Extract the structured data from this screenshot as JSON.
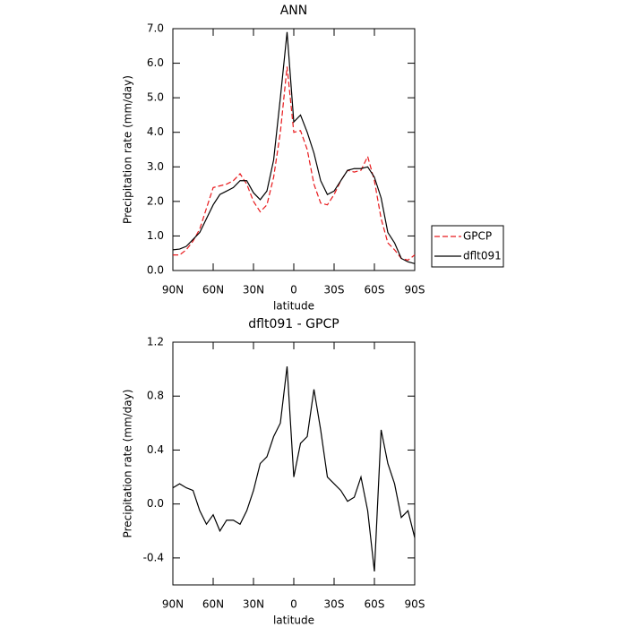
{
  "chart_data": [
    {
      "type": "line",
      "title": "ANN",
      "xlabel": "latitude",
      "ylabel": "Precipitation rate (mm/day)",
      "x": [
        90,
        85,
        80,
        75,
        70,
        65,
        60,
        55,
        50,
        45,
        40,
        35,
        30,
        25,
        20,
        15,
        10,
        5,
        0,
        -5,
        -10,
        -15,
        -20,
        -25,
        -30,
        -35,
        -40,
        -45,
        -50,
        -55,
        -60,
        -65,
        -70,
        -75,
        -80,
        -85,
        -90
      ],
      "series": [
        {
          "name": "GPCP",
          "color": "#e8191c",
          "dash": true,
          "values": [
            0.45,
            0.45,
            0.6,
            0.85,
            1.2,
            1.8,
            2.4,
            2.45,
            2.5,
            2.6,
            2.8,
            2.5,
            2.0,
            1.7,
            1.9,
            2.7,
            4.0,
            5.9,
            4.0,
            4.05,
            3.5,
            2.5,
            1.95,
            1.9,
            2.2,
            2.6,
            2.9,
            2.85,
            2.9,
            3.3,
            2.6,
            1.5,
            0.8,
            0.6,
            0.35,
            0.3,
            0.45
          ]
        },
        {
          "name": "dflt091",
          "color": "#000000",
          "dash": false,
          "values": [
            0.6,
            0.62,
            0.7,
            0.9,
            1.1,
            1.5,
            1.9,
            2.2,
            2.3,
            2.4,
            2.6,
            2.6,
            2.25,
            2.05,
            2.3,
            3.2,
            5.0,
            6.9,
            4.3,
            4.5,
            4.0,
            3.4,
            2.6,
            2.2,
            2.3,
            2.6,
            2.9,
            2.95,
            2.95,
            3.0,
            2.7,
            2.1,
            1.1,
            0.8,
            0.35,
            0.25,
            0.2
          ]
        }
      ],
      "xlim": [
        90,
        -90
      ],
      "xticks": [
        {
          "value": 90,
          "label": "90N"
        },
        {
          "value": 60,
          "label": "60N"
        },
        {
          "value": 30,
          "label": "30N"
        },
        0,
        {
          "value": -30,
          "label": "30S"
        },
        {
          "value": -60,
          "label": "60S"
        },
        {
          "value": -90,
          "label": "90S"
        }
      ],
      "ylim": [
        0,
        7
      ],
      "yticks": [
        {
          "value": 0,
          "label": "0.0"
        },
        {
          "value": 1,
          "label": "1.0"
        },
        {
          "value": 2,
          "label": "2.0"
        },
        {
          "value": 3,
          "label": "3.0"
        },
        {
          "value": 4,
          "label": "4.0"
        },
        {
          "value": 5,
          "label": "5.0"
        },
        {
          "value": 6,
          "label": "6.0"
        },
        {
          "value": 7,
          "label": "7.0"
        }
      ],
      "legend": "outside-right"
    },
    {
      "type": "line",
      "title": "dflt091 - GPCP",
      "xlabel": "latitude",
      "ylabel": "Precipitation rate (mm/day)",
      "x": [
        90,
        85,
        80,
        75,
        70,
        65,
        60,
        55,
        50,
        45,
        40,
        35,
        30,
        25,
        20,
        15,
        10,
        5,
        0,
        -5,
        -10,
        -15,
        -20,
        -25,
        -30,
        -35,
        -40,
        -45,
        -50,
        -55,
        -60,
        -65,
        -70,
        -75,
        -80,
        -85,
        -90
      ],
      "series": [
        {
          "color": "#000000",
          "dash": false,
          "values": [
            0.12,
            0.15,
            0.12,
            0.1,
            -0.05,
            -0.15,
            -0.08,
            -0.2,
            -0.12,
            -0.12,
            -0.15,
            -0.05,
            0.1,
            0.3,
            0.35,
            0.5,
            0.6,
            1.02,
            0.2,
            0.45,
            0.5,
            0.85,
            0.55,
            0.2,
            0.15,
            0.1,
            0.02,
            0.05,
            0.2,
            -0.05,
            -0.5,
            0.55,
            0.3,
            0.15,
            -0.1,
            -0.05,
            -0.25
          ]
        }
      ],
      "xlim": [
        90,
        -90
      ],
      "xticks": [
        {
          "value": 90,
          "label": "90N"
        },
        {
          "value": 60,
          "label": "60N"
        },
        {
          "value": 30,
          "label": "30N"
        },
        0,
        {
          "value": -30,
          "label": "30S"
        },
        {
          "value": -60,
          "label": "60S"
        },
        {
          "value": -90,
          "label": "90S"
        }
      ],
      "ylim": [
        -0.6,
        1.2
      ],
      "yticks": [
        1.2,
        0.8,
        0.4,
        {
          "value": 0,
          "label": "0.0"
        },
        -0.4
      ]
    }
  ]
}
